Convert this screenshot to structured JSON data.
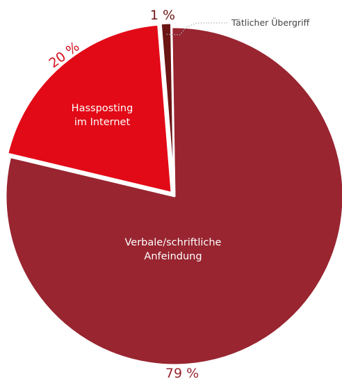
{
  "chart_data": {
    "type": "pie",
    "slices": [
      {
        "label_lines": [
          "Verbale/schriftliche",
          "Anfeindung"
        ],
        "value": 79,
        "value_label": "79 %",
        "color": "#982530",
        "label_color": "#982530"
      },
      {
        "label_lines": [
          "Hassposting",
          "im Internet"
        ],
        "value": 20,
        "value_label": "20 %",
        "color": "#e20a17",
        "label_color": "#d50f1e"
      },
      {
        "label_lines": [
          "Tätlicher Übergriff"
        ],
        "value": 1,
        "value_label": "1 %",
        "color": "#6b1515",
        "label_color": "#6b1515"
      }
    ],
    "callout_line_color": "#aab5bd"
  }
}
